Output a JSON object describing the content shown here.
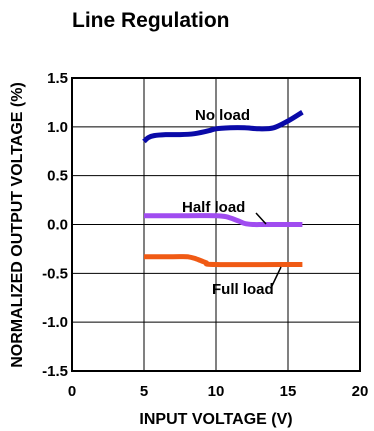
{
  "chart_data": {
    "type": "line",
    "title": "Line Regulation",
    "xlabel": "INPUT VOLTAGE (V)",
    "ylabel": "NORMALIZED OUTPUT VOLTAGE (%)",
    "xlim": [
      0,
      20
    ],
    "ylim": [
      -1.5,
      1.5
    ],
    "x_ticks": [
      0,
      5,
      10,
      15,
      20
    ],
    "y_ticks": [
      1.5,
      1.0,
      0.5,
      0.0,
      -0.5,
      -1.0,
      -1.5
    ],
    "x_tick_labels": [
      "0",
      "5",
      "10",
      "15",
      "20"
    ],
    "y_tick_labels": [
      "1.5",
      "1.0",
      "0.5",
      "0.0",
      "-0.5",
      "-1.0",
      "-1.5"
    ],
    "grid": true,
    "series": [
      {
        "name": "No load",
        "color": "#0a0aa8",
        "x": [
          5.0,
          5.3,
          5.7,
          6.5,
          7.5,
          8.5,
          9.5,
          10.0,
          11.0,
          12.0,
          13.0,
          14.0,
          15.0,
          16.0
        ],
        "y": [
          0.85,
          0.89,
          0.91,
          0.92,
          0.92,
          0.93,
          0.96,
          0.98,
          0.99,
          0.99,
          0.98,
          0.99,
          1.06,
          1.15
        ]
      },
      {
        "name": "Half load",
        "color": "#a04cf0",
        "x": [
          5.0,
          8.0,
          10.0,
          10.7,
          11.5,
          12.0,
          12.6,
          13.5,
          16.0
        ],
        "y": [
          0.09,
          0.09,
          0.09,
          0.08,
          0.04,
          0.01,
          0.0,
          0.0,
          0.0
        ]
      },
      {
        "name": "Full load",
        "color": "#f05a14",
        "x": [
          5.0,
          7.0,
          8.0,
          8.6,
          9.3,
          10.0,
          16.0
        ],
        "y": [
          -0.33,
          -0.33,
          -0.33,
          -0.35,
          -0.39,
          -0.41,
          -0.41
        ]
      }
    ],
    "annotations": [
      {
        "text": "No load",
        "series": "No load"
      },
      {
        "text": "Half load",
        "series": "Half load"
      },
      {
        "text": "Full load",
        "series": "Full load"
      }
    ]
  }
}
